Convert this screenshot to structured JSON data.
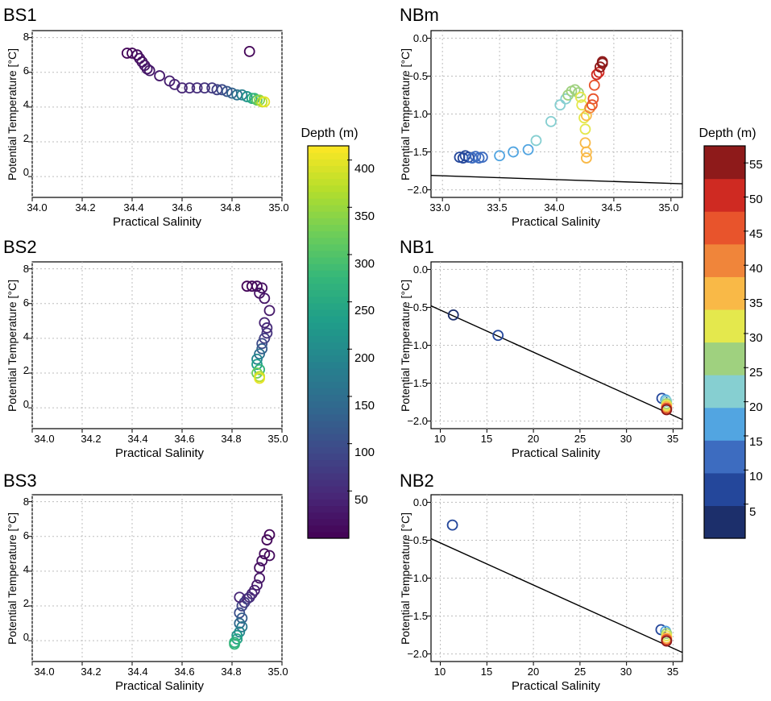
{
  "figure": {
    "colorbar_left": {
      "title": "Depth (m)",
      "ticks": [
        50,
        100,
        150,
        200,
        250,
        300,
        350,
        400
      ],
      "range": [
        0,
        415
      ]
    },
    "colorbar_right": {
      "title": "Depth (m)",
      "ticks": [
        5,
        10,
        15,
        20,
        25,
        30,
        35,
        40,
        45,
        50,
        55
      ],
      "range": [
        0,
        57.5
      ]
    }
  },
  "chart_data": [
    {
      "id": "BS1",
      "type": "scatter",
      "title": "BS1",
      "xlabel": "Practical Salinity",
      "ylabel": "Potential Temperature [°C]",
      "xlim": [
        34.0,
        35.0
      ],
      "ylim": [
        -1.2,
        8.4
      ],
      "xticks": [
        34.0,
        34.2,
        34.4,
        34.6,
        34.8,
        35.0
      ],
      "yticks": [
        0,
        2,
        4,
        6,
        8
      ],
      "xtick_labels": [
        "34.0",
        "34.2",
        "34.4",
        "34.6",
        "34.8",
        "35.0"
      ],
      "ytick_labels": [
        "0",
        "2",
        "4",
        "6",
        "8"
      ],
      "colormap": "viridis",
      "depth_max": 415,
      "points": [
        [
          34.38,
          7.1,
          5
        ],
        [
          34.4,
          7.1,
          8
        ],
        [
          34.42,
          7.0,
          12
        ],
        [
          34.43,
          6.8,
          15
        ],
        [
          34.44,
          6.6,
          18
        ],
        [
          34.45,
          6.4,
          22
        ],
        [
          34.46,
          6.2,
          25
        ],
        [
          34.47,
          6.1,
          28
        ],
        [
          34.51,
          5.8,
          32
        ],
        [
          34.55,
          5.5,
          36
        ],
        [
          34.57,
          5.3,
          40
        ],
        [
          34.6,
          5.1,
          45
        ],
        [
          34.63,
          5.1,
          50
        ],
        [
          34.66,
          5.1,
          55
        ],
        [
          34.69,
          5.1,
          60
        ],
        [
          34.72,
          5.1,
          70
        ],
        [
          34.74,
          5.0,
          80
        ],
        [
          34.76,
          5.0,
          95
        ],
        [
          34.78,
          4.9,
          110
        ],
        [
          34.8,
          4.8,
          130
        ],
        [
          34.82,
          4.7,
          155
        ],
        [
          34.84,
          4.7,
          180
        ],
        [
          34.86,
          4.6,
          210
        ],
        [
          34.88,
          4.5,
          245
        ],
        [
          34.89,
          4.5,
          275
        ],
        [
          34.9,
          4.4,
          305
        ],
        [
          34.91,
          4.4,
          340
        ],
        [
          34.92,
          4.3,
          375
        ],
        [
          34.93,
          4.3,
          400
        ],
        [
          34.87,
          7.2,
          5
        ]
      ]
    },
    {
      "id": "BS2",
      "type": "scatter",
      "title": "BS2",
      "xlabel": "Practical Salinity",
      "ylabel": "Potential Temperature [°C]",
      "xlim": [
        34.0,
        35.0
      ],
      "ylim": [
        -1.2,
        8.4
      ],
      "xticks": [
        34.0,
        34.2,
        34.4,
        34.6,
        34.8,
        35.0
      ],
      "yticks": [
        0,
        2,
        4,
        6,
        8
      ],
      "xtick_labels": [
        "34.0",
        "34.2",
        "34.4",
        "34.6",
        "34.8",
        "35.0"
      ],
      "ytick_labels": [
        "0",
        "2",
        "4",
        "6",
        "8"
      ],
      "colormap": "viridis",
      "depth_max": 415,
      "points": [
        [
          34.86,
          7.0,
          5
        ],
        [
          34.88,
          7.0,
          8
        ],
        [
          34.9,
          7.0,
          12
        ],
        [
          34.92,
          6.9,
          16
        ],
        [
          34.91,
          6.6,
          20
        ],
        [
          34.93,
          6.3,
          25
        ],
        [
          34.95,
          5.6,
          30
        ],
        [
          34.93,
          4.9,
          40
        ],
        [
          34.94,
          4.6,
          50
        ],
        [
          34.94,
          4.3,
          60
        ],
        [
          34.93,
          4.0,
          75
        ],
        [
          34.92,
          3.7,
          95
        ],
        [
          34.92,
          3.4,
          120
        ],
        [
          34.91,
          3.1,
          150
        ],
        [
          34.9,
          2.8,
          190
        ],
        [
          34.9,
          2.5,
          230
        ],
        [
          34.91,
          2.2,
          270
        ],
        [
          34.9,
          2.0,
          320
        ],
        [
          34.91,
          1.8,
          370
        ],
        [
          34.91,
          1.7,
          400
        ]
      ]
    },
    {
      "id": "BS3",
      "type": "scatter",
      "title": "BS3",
      "xlabel": "Practical Salinity",
      "ylabel": "Potential Temperature [°C]",
      "xlim": [
        34.0,
        35.0
      ],
      "ylim": [
        -1.2,
        8.4
      ],
      "xticks": [
        34.0,
        34.2,
        34.4,
        34.6,
        34.8,
        35.0
      ],
      "yticks": [
        0,
        2,
        4,
        6,
        8
      ],
      "xtick_labels": [
        "34.0",
        "34.2",
        "34.4",
        "34.6",
        "34.8",
        "35.0"
      ],
      "ytick_labels": [
        "0",
        "2",
        "4",
        "6",
        "8"
      ],
      "colormap": "viridis",
      "depth_max": 415,
      "points": [
        [
          34.95,
          6.1,
          5
        ],
        [
          34.94,
          5.8,
          8
        ],
        [
          34.95,
          4.9,
          12
        ],
        [
          34.92,
          4.6,
          15
        ],
        [
          34.91,
          4.2,
          18
        ],
        [
          34.91,
          3.6,
          22
        ],
        [
          34.9,
          3.2,
          28
        ],
        [
          34.89,
          2.9,
          34
        ],
        [
          34.88,
          2.7,
          40
        ],
        [
          34.87,
          2.5,
          50
        ],
        [
          34.86,
          2.4,
          60
        ],
        [
          34.85,
          2.2,
          70
        ],
        [
          34.84,
          2.0,
          85
        ],
        [
          34.83,
          1.6,
          100
        ],
        [
          34.84,
          1.3,
          120
        ],
        [
          34.83,
          1.0,
          140
        ],
        [
          34.84,
          0.8,
          165
        ],
        [
          34.83,
          0.5,
          190
        ],
        [
          34.82,
          0.3,
          215
        ],
        [
          34.82,
          0.1,
          240
        ],
        [
          34.81,
          -0.1,
          260
        ],
        [
          34.81,
          -0.2,
          275
        ],
        [
          34.83,
          2.5,
          45
        ],
        [
          34.93,
          5.0,
          10
        ]
      ]
    },
    {
      "id": "NBm",
      "type": "scatter",
      "title": "NBm",
      "xlabel": "Practical Salinity",
      "ylabel": "Potential Temperature [°C]",
      "xlim": [
        32.9,
        35.1
      ],
      "ylim": [
        -2.1,
        0.1
      ],
      "xticks": [
        33.0,
        33.5,
        34.0,
        34.5,
        35.0
      ],
      "yticks": [
        -2.0,
        -1.5,
        -1.0,
        -0.5,
        0.0
      ],
      "xtick_labels": [
        "33.0",
        "33.5",
        "34.0",
        "34.5",
        "35.0"
      ],
      "ytick_labels": [
        "−2.0",
        "−1.5",
        "−1.0",
        "−0.5",
        "0.0"
      ],
      "colormap": "spectral",
      "depth_max": 57.5,
      "freezing_line": [
        [
          32.9,
          -1.81
        ],
        [
          35.1,
          -1.92
        ]
      ],
      "points": [
        [
          33.15,
          -1.57,
          8
        ],
        [
          33.18,
          -1.58,
          8
        ],
        [
          33.2,
          -1.55,
          9
        ],
        [
          33.23,
          -1.57,
          9
        ],
        [
          33.26,
          -1.58,
          10
        ],
        [
          33.29,
          -1.56,
          10
        ],
        [
          33.32,
          -1.58,
          11
        ],
        [
          33.35,
          -1.57,
          11
        ],
        [
          33.5,
          -1.55,
          15
        ],
        [
          33.62,
          -1.5,
          17
        ],
        [
          33.75,
          -1.47,
          19
        ],
        [
          33.82,
          -1.35,
          20
        ],
        [
          33.95,
          -1.1,
          21
        ],
        [
          34.03,
          -0.88,
          22
        ],
        [
          34.08,
          -0.8,
          23
        ],
        [
          34.1,
          -0.75,
          24
        ],
        [
          34.13,
          -0.7,
          25
        ],
        [
          34.16,
          -0.68,
          26
        ],
        [
          34.19,
          -0.72,
          28
        ],
        [
          34.21,
          -0.78,
          29
        ],
        [
          34.22,
          -0.88,
          30
        ],
        [
          34.24,
          -1.05,
          32
        ],
        [
          34.25,
          -1.2,
          33
        ],
        [
          34.25,
          -1.38,
          35
        ],
        [
          34.26,
          -1.5,
          36
        ],
        [
          34.26,
          -1.58,
          37
        ],
        [
          34.26,
          -1.02,
          38
        ],
        [
          34.29,
          -0.92,
          42
        ],
        [
          34.31,
          -0.88,
          44
        ],
        [
          34.32,
          -0.8,
          46
        ],
        [
          34.33,
          -0.62,
          47
        ],
        [
          34.35,
          -0.48,
          48
        ],
        [
          34.37,
          -0.45,
          50
        ],
        [
          34.38,
          -0.38,
          53
        ],
        [
          34.4,
          -0.33,
          55
        ],
        [
          34.4,
          -0.31,
          56
        ]
      ]
    },
    {
      "id": "NB1",
      "type": "scatter",
      "title": "NB1",
      "xlabel": "Practical Salinity",
      "ylabel": "Potential Temperature [°C]",
      "xlim": [
        9,
        36
      ],
      "ylim": [
        -2.1,
        0.1
      ],
      "xticks": [
        10,
        15,
        20,
        25,
        30,
        35
      ],
      "yticks": [
        -2.0,
        -1.5,
        -1.0,
        -0.5,
        0.0
      ],
      "xtick_labels": [
        "10",
        "15",
        "20",
        "25",
        "30",
        "35"
      ],
      "ytick_labels": [
        "−2.0",
        "−1.5",
        "−1.0",
        "−0.5",
        "0.0"
      ],
      "colormap": "spectral",
      "depth_max": 57.5,
      "freezing_line": [
        [
          9,
          -0.48
        ],
        [
          36,
          -1.98
        ]
      ],
      "points": [
        [
          11.4,
          -0.6,
          3
        ],
        [
          16.2,
          -0.87,
          5
        ],
        [
          33.8,
          -1.7,
          8
        ],
        [
          34.2,
          -1.72,
          18
        ],
        [
          34.3,
          -1.74,
          22
        ],
        [
          34.3,
          -1.77,
          28
        ],
        [
          34.3,
          -1.79,
          32
        ],
        [
          34.3,
          -1.81,
          38
        ],
        [
          34.3,
          -1.83,
          45
        ],
        [
          34.3,
          -1.85,
          55
        ]
      ]
    },
    {
      "id": "NB2",
      "type": "scatter",
      "title": "NB2",
      "xlabel": "Practical Salinity",
      "ylabel": "Potential Temperature [°C]",
      "xlim": [
        9,
        36
      ],
      "ylim": [
        -2.1,
        0.1
      ],
      "xticks": [
        10,
        15,
        20,
        25,
        30,
        35
      ],
      "yticks": [
        -2.0,
        -1.5,
        -1.0,
        -0.5,
        0.0
      ],
      "xtick_labels": [
        "10",
        "15",
        "20",
        "25",
        "30",
        "35"
      ],
      "ytick_labels": [
        "−2.0",
        "−1.5",
        "−1.0",
        "−0.5",
        "0.0"
      ],
      "colormap": "spectral",
      "depth_max": 57.5,
      "freezing_line": [
        [
          9,
          -0.48
        ],
        [
          36,
          -1.98
        ]
      ],
      "points": [
        [
          11.3,
          -0.3,
          5
        ],
        [
          33.7,
          -1.68,
          8
        ],
        [
          34.2,
          -1.7,
          18
        ],
        [
          34.3,
          -1.73,
          24
        ],
        [
          34.3,
          -1.76,
          30
        ],
        [
          34.3,
          -1.79,
          36
        ],
        [
          34.3,
          -1.81,
          44
        ],
        [
          34.3,
          -1.83,
          55
        ]
      ]
    }
  ]
}
